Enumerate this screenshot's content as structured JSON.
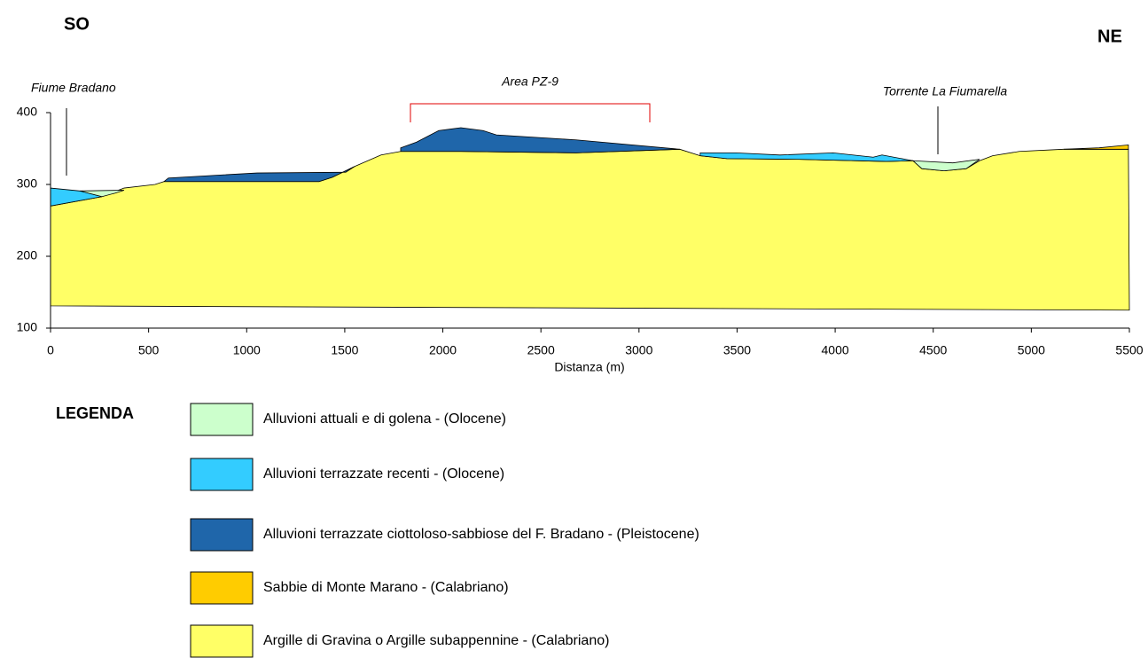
{
  "chart_data": {
    "type": "cross-section",
    "corner_labels": [
      "SO",
      "NE"
    ],
    "annotations": [
      "Fiume Bradano",
      "Area PZ-9",
      "Torrente La Fiumarella"
    ],
    "xlabel": "Distanza (m)",
    "legend_title": "LEGENDA",
    "xlim": [
      0,
      5500
    ],
    "xticks": [
      0,
      500,
      1000,
      1500,
      2000,
      2500,
      3000,
      3500,
      4000,
      4500,
      5000,
      5500
    ],
    "ylim": [
      100,
      400
    ],
    "yticks": [
      100,
      200,
      300,
      400
    ],
    "series": [
      {
        "name": "Alluvioni attuali e di golena - (Olocene)",
        "color": "#ccffcc",
        "parts": [
          {
            "x": [
              149,
              375,
              330,
              262
            ],
            "values": [
              291,
              292,
              288,
              283
            ]
          },
          {
            "x": [
              4397,
              4600,
              4736,
              4668,
              4555,
              4442
            ],
            "values": [
              333,
              330,
              335,
              322,
              319,
              322
            ]
          }
        ]
      },
      {
        "name": "Alluvioni terrazzate recenti - (Olocene)",
        "color": "#33ccff",
        "parts": [
          {
            "x": [
              0,
              149,
              262,
              0
            ],
            "values": [
              295,
              291,
              283,
              270
            ]
          },
          {
            "x": [
              3312,
              3493,
              3719,
              3990,
              4194,
              4239,
              4397,
              4261,
              3809,
              3448,
              3312
            ],
            "values": [
              344,
              344,
              341,
              344,
              338,
              341,
              333,
              332,
              335,
              336,
              340
            ]
          }
        ]
      },
      {
        "name": "Alluvioni terrazzate ciottoloso-sabbiose del F. Bradano - (Pleistocene)",
        "color": "#1f66aa",
        "parts": [
          {
            "x": [
              578,
              601,
              1053,
              1505,
              1550,
              1437,
              1369,
              578
            ],
            "values": [
              304,
              309,
              316,
              317,
              325,
              310,
              304,
              304
            ]
          },
          {
            "x": [
              1785,
              1866,
              1979,
              2092,
              2205,
              2273,
              2680,
              3208,
              2680,
              2092,
              1785
            ],
            "values": [
              351,
              359,
              375,
              379,
              375,
              369,
              362,
              349,
              344,
              346,
              346
            ]
          }
        ]
      },
      {
        "name": "Sabbie di Monte Marano - (Calabriano)",
        "color": "#ffcc00",
        "parts": [
          {
            "x": [
              5346,
              5495,
              5495,
              5165
            ],
            "values": [
              351,
              355,
              349,
              349
            ]
          }
        ]
      },
      {
        "name": "Argille di Gravina o Argille subappennine - (Calabriano)",
        "color": "#ffff66",
        "parts": [
          {
            "x": [
              0,
              262,
              375,
              533,
              578,
              1369,
              1437,
              1550,
              1685,
              1785,
              2092,
              2680,
              3208,
              3312,
              3448,
              3809,
              4261,
              4397,
              4442,
              4555,
              4668,
              4736,
              4803,
              4939,
              5165,
              5495,
              5500,
              0
            ],
            "values": [
              270,
              283,
              295,
              300,
              304,
              304,
              310,
              325,
              341,
              346,
              346,
              344,
              349,
              340,
              336,
              335,
              332,
              333,
              322,
              319,
              322,
              333,
              340,
              346,
              349,
              349,
              125,
              131
            ]
          }
        ]
      }
    ]
  }
}
